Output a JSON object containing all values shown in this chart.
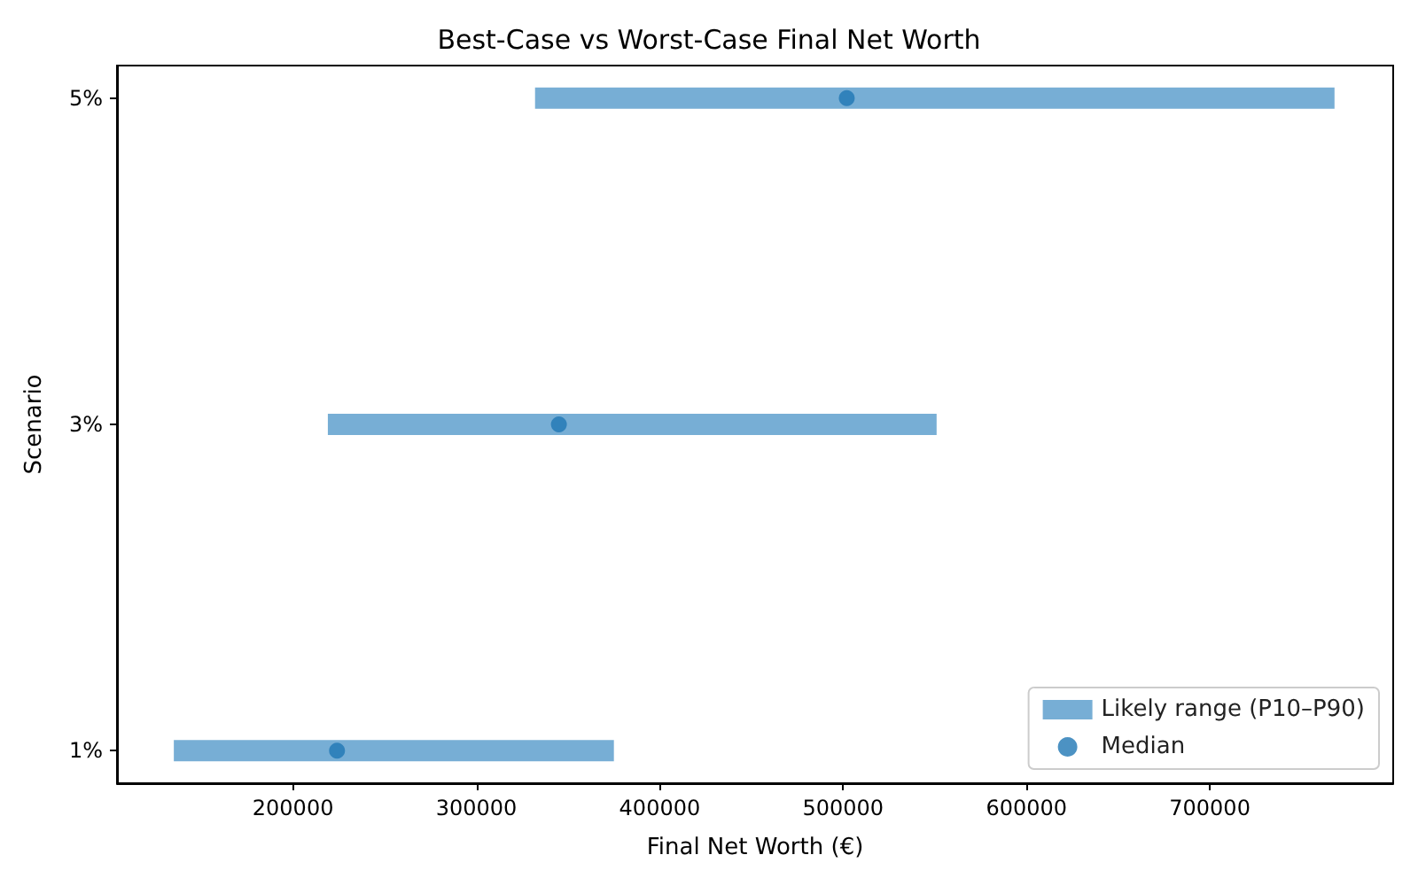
{
  "chart_data": {
    "type": "bar",
    "orientation": "horizontal",
    "title": "Best-Case vs Worst-Case Final Net Worth",
    "xlabel": "Final Net Worth (€)",
    "ylabel": "Scenario",
    "categories": [
      "5%",
      "3%",
      "1%"
    ],
    "xlim": [
      104000,
      800000
    ],
    "xticks": [
      200000,
      300000,
      400000,
      500000,
      600000,
      700000
    ],
    "grid": false,
    "legend": "bottom right",
    "marker": "circle",
    "series": [
      {
        "name": "Likely range (P10–P90)",
        "color": "#77aed5",
        "base": [
          332000,
          219000,
          135000
        ],
        "values": [
          436000,
          332000,
          240000
        ]
      },
      {
        "type": "scatter",
        "name": "Median",
        "color": "#1f77b4",
        "x": [
          "5%",
          "3%",
          "1%"
        ],
        "values": [
          502000,
          345000,
          224000
        ]
      }
    ]
  }
}
